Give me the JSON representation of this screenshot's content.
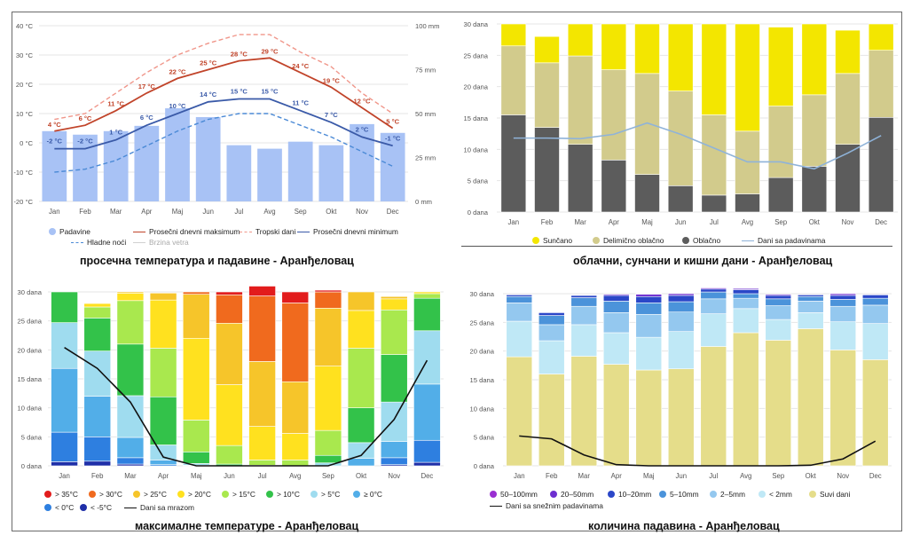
{
  "months": [
    "Jan",
    "Feb",
    "Mar",
    "Apr",
    "Maj",
    "Jun",
    "Jul",
    "Avg",
    "Sep",
    "Okt",
    "Nov",
    "Dec"
  ],
  "chart_data": [
    {
      "id": "temp",
      "type": "bar+line",
      "title": "просечна температура и падавине - Аранђеловац",
      "y_left": {
        "min": -20,
        "max": 40,
        "ticks": [
          "40 °C",
          "30 °C",
          "20 °C",
          "10 °C",
          "0 °C",
          "-10 °C",
          "-20 °C"
        ]
      },
      "y_right": {
        "min": 0,
        "max": 100,
        "ticks": [
          "100 mm",
          "75 mm",
          "50 mm",
          "25 mm",
          "0 mm"
        ]
      },
      "precip_mm": [
        40,
        38,
        40,
        43,
        53,
        48,
        32,
        30,
        34,
        32,
        44,
        39
      ],
      "series": [
        {
          "name": "Prosečni dnevni maksimum",
          "color": "#c1442a",
          "values": [
            4,
            6,
            11,
            17,
            22,
            25,
            28,
            29,
            24,
            19,
            12,
            5
          ],
          "labels": true
        },
        {
          "name": "Prosečni dnevni minimum",
          "color": "#3a5aa8",
          "values": [
            -2,
            -2,
            1,
            6,
            10,
            14,
            15,
            15,
            11,
            7,
            2,
            -1
          ],
          "labels": true
        },
        {
          "name": "Tropski dani",
          "color": "#f0968a",
          "values": [
            8,
            10,
            17,
            24,
            30,
            34,
            37,
            37,
            31,
            26,
            17,
            10
          ],
          "labels": false
        },
        {
          "name": "Hladne noći",
          "color": "#4b8ad6",
          "values": [
            -10,
            -9,
            -6,
            -1,
            4,
            8,
            10,
            10,
            6,
            2,
            -3,
            -8
          ],
          "labels": false
        }
      ],
      "legend": [
        {
          "label": "Padavine",
          "color": "#a8c2f5",
          "kind": "dot"
        },
        {
          "label": "Prosečni dnevni maksimum",
          "color": "#c1442a",
          "kind": "line"
        },
        {
          "label": "Tropski dani",
          "color": "#f0968a",
          "kind": "dash"
        },
        {
          "label": "Prosečni dnevni minimum",
          "color": "#3a5aa8",
          "kind": "line"
        },
        {
          "label": "Hladne noći",
          "color": "#4b8ad6",
          "kind": "dash"
        },
        {
          "label": "Brzina vetra",
          "color": "#d0d0d0",
          "kind": "line"
        }
      ]
    },
    {
      "id": "sun",
      "type": "stacked-bar+line",
      "title": "облачни, сунчани и кишни дани - Аранђеловац",
      "y": {
        "min": 0,
        "max": 30,
        "ticks": [
          "30 dana",
          "25 dana",
          "20 dana",
          "15 dana",
          "10 dana",
          "5 dana",
          "0 dana"
        ]
      },
      "stacks": [
        {
          "name": "Oblačno",
          "color": "#5c5c5c",
          "values": [
            15.5,
            13.5,
            10.8,
            8.3,
            6.0,
            4.2,
            2.7,
            2.9,
            5.5,
            7.3,
            10.8,
            15.1
          ]
        },
        {
          "name": "Delimično oblačno",
          "color": "#d2cb8c",
          "values": [
            11.0,
            10.3,
            14.1,
            14.4,
            16.1,
            15.1,
            12.8,
            10.0,
            11.4,
            11.4,
            11.3,
            10.7
          ]
        },
        {
          "name": "Sunčano",
          "color": "#f3e600",
          "values": [
            3.5,
            4.2,
            5.1,
            7.3,
            7.9,
            10.7,
            14.5,
            17.1,
            12.6,
            11.3,
            6.9,
            4.2
          ]
        }
      ],
      "line": {
        "name": "Dani sa padavinama",
        "color": "#8fb3d9",
        "values": [
          11.8,
          11.8,
          11.7,
          12.4,
          14.2,
          12.4,
          10.2,
          8.0,
          8.0,
          6.9,
          9.4,
          12.2
        ]
      },
      "legend": [
        {
          "label": "Sunčano",
          "color": "#f3e600",
          "kind": "dot"
        },
        {
          "label": "Delimično oblačno",
          "color": "#d2cb8c",
          "kind": "dot"
        },
        {
          "label": "Oblačno",
          "color": "#5c5c5c",
          "kind": "dot"
        },
        {
          "label": "Dani sa padavinama",
          "color": "#8fb3d9",
          "kind": "line"
        }
      ]
    },
    {
      "id": "maxt",
      "type": "stacked-bar+line",
      "title": "максималне температуре - Аранђеловац",
      "y": {
        "min": 0,
        "max": 30,
        "ticks": [
          "30 dana",
          "25 dana",
          "20 dana",
          "15 dana",
          "10 dana",
          "5 dana",
          "0 dana"
        ]
      },
      "stacks": [
        {
          "name": "< -5°C",
          "color": "#1f2fa8",
          "values": [
            0.7,
            0.8,
            0.3,
            0,
            0,
            0,
            0,
            0,
            0,
            0,
            0.2,
            0.6
          ]
        },
        {
          "name": "< 0°C",
          "color": "#2e7fe0",
          "values": [
            5.1,
            4.2,
            1.1,
            0.2,
            0,
            0,
            0,
            0,
            0,
            0,
            1.2,
            3.8
          ]
        },
        {
          "name": "≥ 0°C",
          "color": "#52aee8",
          "values": [
            11.0,
            7.0,
            3.5,
            0.8,
            0.1,
            0,
            0,
            0,
            0,
            1.3,
            2.8,
            9.7
          ]
        },
        {
          "name": "> 5°C",
          "color": "#9fdcef",
          "values": [
            7.9,
            7.8,
            7.2,
            2.6,
            0.3,
            0,
            0,
            0,
            0.5,
            2.7,
            6.8,
            9.2
          ]
        },
        {
          "name": "> 10°C",
          "color": "#33c24a",
          "values": [
            5.3,
            5.7,
            8.9,
            8.3,
            2.0,
            0.3,
            0.1,
            0,
            1.3,
            6.0,
            8.2,
            5.6
          ]
        },
        {
          "name": "> 15°C",
          "color": "#a9e84e",
          "values": [
            0,
            1.9,
            7.5,
            8.4,
            5.5,
            3.2,
            0.9,
            1.0,
            4.3,
            10.3,
            7.7,
            0.8
          ]
        },
        {
          "name": "> 20°C",
          "color": "#ffe11f",
          "values": [
            0,
            0.6,
            1.3,
            8.3,
            14.1,
            10.5,
            5.8,
            4.6,
            11.1,
            6.5,
            1.9,
            0.3
          ]
        },
        {
          "name": "> 25°C",
          "color": "#f6c52a",
          "values": [
            0,
            0,
            0.2,
            1.2,
            7.6,
            10.6,
            11.2,
            8.9,
            10.0,
            3.2,
            0.4,
            0
          ]
        },
        {
          "name": "> 30°C",
          "color": "#f06a1e",
          "values": [
            0,
            0,
            0,
            0,
            0.4,
            4.9,
            11.3,
            13.6,
            2.8,
            0,
            0,
            0
          ]
        },
        {
          "name": "> 35°C",
          "color": "#e21c1c",
          "values": [
            0,
            0,
            0,
            0,
            0,
            0.5,
            1.7,
            1.9,
            0.3,
            0,
            0,
            0
          ]
        }
      ],
      "line": {
        "name": "Dani sa mrazom",
        "color": "#111111",
        "values": [
          20.4,
          16.8,
          11.0,
          1.5,
          0,
          0,
          0,
          0,
          0,
          1.8,
          8.0,
          18.2
        ]
      },
      "legend": [
        {
          "label": "> 35°C",
          "color": "#e21c1c",
          "kind": "dot"
        },
        {
          "label": "> 30°C",
          "color": "#f06a1e",
          "kind": "dot"
        },
        {
          "label": "> 25°C",
          "color": "#f6c52a",
          "kind": "dot"
        },
        {
          "label": "> 20°C",
          "color": "#ffe11f",
          "kind": "dot"
        },
        {
          "label": "> 15°C",
          "color": "#a9e84e",
          "kind": "dot"
        },
        {
          "label": "> 10°C",
          "color": "#33c24a",
          "kind": "dot"
        },
        {
          "label": "> 5°C",
          "color": "#9fdcef",
          "kind": "dot"
        },
        {
          "label": "≥ 0°C",
          "color": "#52aee8",
          "kind": "dot"
        },
        {
          "label": "< 0°C",
          "color": "#2e7fe0",
          "kind": "dot"
        },
        {
          "label": "< -5°C",
          "color": "#1f2fa8",
          "kind": "dot"
        },
        {
          "label": "Dani sa mrazom",
          "color": "#111111",
          "kind": "line"
        }
      ]
    },
    {
      "id": "prec",
      "type": "stacked-bar+line",
      "title": "количина падавина - Аранђеловац",
      "y": {
        "min": 0,
        "max": 30,
        "ticks": [
          "30 dana",
          "25 dana",
          "20 dana",
          "15 dana",
          "10 dana",
          "5 dana",
          "0 dana"
        ]
      },
      "stacks": [
        {
          "name": "Suvi dani",
          "color": "#e5dd8a",
          "values": [
            19.0,
            16.0,
            19.1,
            17.7,
            16.7,
            16.9,
            20.8,
            23.2,
            21.9,
            23.9,
            20.2,
            18.5
          ]
        },
        {
          "name": "< 2mm",
          "color": "#bfe8f6",
          "values": [
            6.2,
            5.8,
            5.5,
            5.5,
            5.7,
            6.5,
            5.7,
            4.2,
            3.6,
            2.8,
            4.9,
            6.3
          ]
        },
        {
          "name": "2–5mm",
          "color": "#94c8ef",
          "values": [
            3.2,
            2.8,
            3.2,
            3.5,
            4.0,
            3.4,
            2.6,
            1.8,
            2.4,
            2.0,
            2.7,
            3.2
          ]
        },
        {
          "name": "5–10mm",
          "color": "#4b93da",
          "values": [
            1.1,
            1.6,
            1.5,
            2.0,
            2.0,
            1.8,
            1.2,
            0.8,
            1.2,
            0.8,
            1.2,
            1.2
          ]
        },
        {
          "name": "10–20mm",
          "color": "#2b47c8",
          "values": [
            0.3,
            0.5,
            0.4,
            1.0,
            1.1,
            1.1,
            0.5,
            0.7,
            0.6,
            0.3,
            0.7,
            0.6
          ]
        },
        {
          "name": "20–50mm",
          "color": "#6e2fd0",
          "values": [
            0.1,
            0.1,
            0.1,
            0.2,
            0.4,
            0.3,
            0.2,
            0.2,
            0.2,
            0.1,
            0.3,
            0.1
          ]
        },
        {
          "name": "50–100mm",
          "color": "#9a2fd2",
          "values": [
            0,
            0,
            0,
            0,
            0.1,
            0,
            0,
            0.1,
            0,
            0,
            0.1,
            0
          ]
        }
      ],
      "line": {
        "name": "Dani sa snežnim padavinama",
        "color": "#111111",
        "values": [
          5.2,
          4.7,
          1.9,
          0.2,
          0,
          0,
          0,
          0,
          0,
          0.1,
          1.2,
          4.3
        ]
      },
      "legend": [
        {
          "label": "50–100mm",
          "color": "#9a2fd2",
          "kind": "dot"
        },
        {
          "label": "20–50mm",
          "color": "#6e2fd0",
          "kind": "dot"
        },
        {
          "label": "10–20mm",
          "color": "#2b47c8",
          "kind": "dot"
        },
        {
          "label": "5–10mm",
          "color": "#4b93da",
          "kind": "dot"
        },
        {
          "label": "2–5mm",
          "color": "#94c8ef",
          "kind": "dot"
        },
        {
          "label": "< 2mm",
          "color": "#bfe8f6",
          "kind": "dot"
        },
        {
          "label": "Suvi dani",
          "color": "#e5dd8a",
          "kind": "dot"
        },
        {
          "label": "Dani sa snežnim padavinama",
          "color": "#111111",
          "kind": "line"
        }
      ]
    }
  ]
}
